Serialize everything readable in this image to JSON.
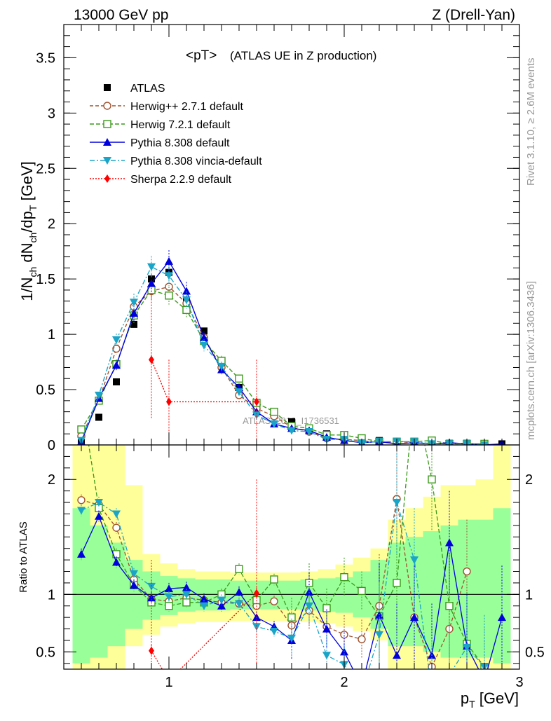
{
  "header": {
    "left": "13000 GeV pp",
    "right": "Z (Drell-Yan)"
  },
  "sidebar": {
    "rivet": "Rivet 3.1.10, ≥ 2.6M events",
    "mcplots": "mcplots.cern.ch [arXiv:1306.3436]"
  },
  "watermark": "ATLAS_2019_I1736531",
  "colors": {
    "atlas": "#000000",
    "herwigpp": "#a0522d",
    "herwig7": "#3a9a1a",
    "pythia": "#0000dd",
    "vincia": "#1aa5c8",
    "sherpa": "#ff0000",
    "band_inner": "#99ff99",
    "band_outer": "#ffff99"
  },
  "chart_data": [
    {
      "type": "line",
      "title": "<pT>",
      "subtitle": "(ATLAS UE in Z production)",
      "ylabel": "1/N_ch dN_ch/dp_T [GeV]",
      "xlabel": "",
      "xlim": [
        0.4,
        3.0
      ],
      "ylim": [
        0,
        3.8
      ],
      "yticks": [
        0,
        0.5,
        1,
        1.5,
        2,
        2.5,
        3,
        3.5
      ],
      "ytick_labels": [
        "0",
        "0.5",
        "1",
        "1.5",
        "2",
        "2.5",
        "3",
        "3.5"
      ],
      "legend": [
        "ATLAS",
        "Herwig++ 2.7.1 default",
        "Herwig 7.2.1 default",
        "Pythia 8.308 default",
        "Pythia 8.308 vincia-default",
        "Sherpa 2.2.9 default"
      ],
      "series": [
        {
          "name": "ATLAS",
          "marker": "square",
          "x": [
            0.5,
            0.6,
            0.7,
            0.8,
            0.9,
            1.0,
            1.1,
            1.2,
            1.3,
            1.4,
            1.5,
            1.6,
            1.7,
            1.8,
            1.9,
            2.0,
            2.1,
            2.2,
            2.3,
            2.4,
            2.5,
            2.6,
            2.7,
            2.8,
            2.9
          ],
          "y": [
            0.02,
            0.25,
            0.57,
            1.09,
            1.5,
            1.56,
            1.31,
            1.03,
            0.75,
            0.52,
            0.38,
            0.27,
            0.21,
            0.14,
            0.1,
            0.08,
            0.06,
            0.04,
            0.03,
            0.02,
            0.02,
            0.015,
            0.015,
            0.01,
            0.01
          ]
        },
        {
          "name": "Herwig++ 2.7.1 default",
          "marker": "circle-open",
          "x": [
            0.5,
            0.6,
            0.7,
            0.8,
            0.9,
            1.0,
            1.1,
            1.2,
            1.3,
            1.4,
            1.5,
            1.6,
            1.7,
            1.8,
            1.9,
            2.0,
            2.1,
            2.2,
            2.3,
            2.4,
            2.5,
            2.6,
            2.7,
            2.8
          ],
          "y": [
            0.08,
            0.4,
            0.87,
            1.25,
            1.39,
            1.43,
            1.28,
            0.97,
            0.7,
            0.45,
            0.33,
            0.26,
            0.16,
            0.12,
            0.06,
            0.05,
            0.04,
            0.02,
            0.03,
            0.02,
            0.01,
            0.01,
            0.01,
            0.01
          ]
        },
        {
          "name": "Herwig 7.2.1 default",
          "marker": "square-open",
          "x": [
            0.5,
            0.6,
            0.7,
            0.8,
            0.9,
            1.0,
            1.1,
            1.2,
            1.3,
            1.4,
            1.5,
            1.6,
            1.7,
            1.8,
            1.9,
            2.0,
            2.1,
            2.2,
            2.3,
            2.4,
            2.5,
            2.6,
            2.7,
            2.8
          ],
          "y": [
            0.14,
            0.4,
            0.73,
            1.17,
            1.4,
            1.35,
            1.22,
            0.94,
            0.76,
            0.6,
            0.38,
            0.3,
            0.17,
            0.15,
            0.09,
            0.09,
            0.06,
            0.03,
            0.03,
            0.03,
            0.04,
            0.01,
            0.01,
            0.01
          ]
        },
        {
          "name": "Pythia 8.308 default",
          "marker": "triangle-up",
          "x": [
            0.5,
            0.6,
            0.7,
            0.8,
            0.9,
            1.0,
            1.1,
            1.2,
            1.3,
            1.4,
            1.5,
            1.6,
            1.7,
            1.8,
            1.9,
            2.0,
            2.1,
            2.2,
            2.3,
            2.4,
            2.5,
            2.6,
            2.7,
            2.8,
            2.9
          ],
          "y": [
            0.03,
            0.42,
            0.72,
            1.19,
            1.46,
            1.66,
            1.39,
            0.97,
            0.68,
            0.52,
            0.3,
            0.19,
            0.15,
            0.13,
            0.07,
            0.04,
            0.02,
            0.03,
            0.01,
            0.02,
            0.01,
            0.02,
            0.01,
            0.0,
            0.01
          ]
        },
        {
          "name": "Pythia 8.308 vincia-default",
          "marker": "triangle-down",
          "x": [
            0.5,
            0.6,
            0.7,
            0.8,
            0.9,
            1.0,
            1.1,
            1.2,
            1.3,
            1.4,
            1.5,
            1.6,
            1.7,
            1.8,
            1.9,
            2.0,
            2.1,
            2.2,
            2.3,
            2.4,
            2.5,
            2.6,
            2.7,
            2.8
          ],
          "y": [
            0.04,
            0.45,
            0.95,
            1.29,
            1.61,
            1.53,
            1.31,
            0.9,
            0.71,
            0.48,
            0.27,
            0.19,
            0.13,
            0.12,
            0.05,
            0.05,
            0.02,
            0.03,
            0.03,
            0.03,
            0.01,
            0.01,
            0.01,
            0.0
          ]
        },
        {
          "name": "Sherpa 2.2.9 default",
          "marker": "diamond",
          "x": [
            0.9,
            1.0,
            1.5
          ],
          "y": [
            0.77,
            0.39,
            0.39
          ]
        }
      ]
    },
    {
      "type": "line",
      "title": "",
      "ylabel": "Ratio to ATLAS",
      "xlabel": "p_T [GeV]",
      "xlim": [
        0.4,
        3.0
      ],
      "ylim": [
        0.35,
        2.3
      ],
      "yticks": [
        0.5,
        1,
        2
      ],
      "ytick_labels": [
        "0.5",
        "1",
        "2"
      ],
      "xticks": [
        1,
        2,
        3
      ],
      "xtick_labels": [
        "1",
        "2",
        "3"
      ],
      "band_edges": [
        0.45,
        0.55,
        0.65,
        0.75,
        0.85,
        0.95,
        1.05,
        1.15,
        1.25,
        1.35,
        1.45,
        1.55,
        1.65,
        1.75,
        1.85,
        1.95,
        2.05,
        2.15,
        2.25,
        2.35,
        2.45,
        2.55,
        2.65,
        2.75,
        2.85,
        2.95
      ],
      "band_inner": [
        [
          0.4,
          1.75
        ],
        [
          0.45,
          1.6
        ],
        [
          0.55,
          1.45
        ],
        [
          0.7,
          1.3
        ],
        [
          0.78,
          1.2
        ],
        [
          0.82,
          1.16
        ],
        [
          0.85,
          1.14
        ],
        [
          0.86,
          1.13
        ],
        [
          0.86,
          1.13
        ],
        [
          0.87,
          1.12
        ],
        [
          0.87,
          1.12
        ],
        [
          0.87,
          1.12
        ],
        [
          0.87,
          1.12
        ],
        [
          0.86,
          1.13
        ],
        [
          0.85,
          1.14
        ],
        [
          0.84,
          1.15
        ],
        [
          0.8,
          1.2
        ],
        [
          0.7,
          1.3
        ],
        [
          0.55,
          1.45
        ],
        [
          0.55,
          1.5
        ],
        [
          0.5,
          1.55
        ],
        [
          0.45,
          1.6
        ],
        [
          0.45,
          1.65
        ],
        [
          0.45,
          1.65
        ],
        [
          0.4,
          1.75
        ]
      ],
      "band_outer": [
        [
          0.35,
          2.3
        ],
        [
          0.35,
          2.3
        ],
        [
          0.35,
          2.3
        ],
        [
          0.55,
          1.95
        ],
        [
          0.65,
          1.35
        ],
        [
          0.72,
          1.27
        ],
        [
          0.75,
          1.22
        ],
        [
          0.76,
          1.2
        ],
        [
          0.76,
          1.2
        ],
        [
          0.77,
          1.19
        ],
        [
          0.77,
          1.19
        ],
        [
          0.77,
          1.19
        ],
        [
          0.77,
          1.19
        ],
        [
          0.76,
          1.2
        ],
        [
          0.75,
          1.22
        ],
        [
          0.72,
          1.26
        ],
        [
          0.68,
          1.32
        ],
        [
          0.6,
          1.4
        ],
        [
          0.35,
          1.65
        ],
        [
          0.35,
          1.75
        ],
        [
          0.35,
          1.85
        ],
        [
          0.35,
          1.95
        ],
        [
          0.35,
          1.95
        ],
        [
          0.35,
          2.0
        ],
        [
          0.35,
          2.3
        ]
      ],
      "series": [
        {
          "name": "Herwig++ 2.7.1 default",
          "x": [
            0.5,
            0.6,
            0.7,
            0.8,
            0.9,
            1.0,
            1.1,
            1.2,
            1.3,
            1.4,
            1.5,
            1.6,
            1.7,
            1.8,
            1.9,
            2.0,
            2.1,
            2.2,
            2.3,
            2.4,
            2.5,
            2.6,
            2.7
          ],
          "y": [
            1.82,
            1.78,
            1.58,
            1.13,
            0.96,
            0.94,
            0.97,
            0.95,
            0.93,
            0.92,
            0.9,
            0.94,
            0.73,
            0.86,
            0.72,
            0.65,
            0.61,
            0.9,
            1.83,
            0.8,
            0.37,
            0.7,
            1.2
          ]
        },
        {
          "name": "Herwig 7.2.1 default",
          "x": [
            0.5,
            0.6,
            0.7,
            0.8,
            0.9,
            1.0,
            1.1,
            1.2,
            1.3,
            1.4,
            1.5,
            1.6,
            1.7,
            1.8,
            1.9,
            2.0,
            2.1,
            2.2,
            2.3,
            2.4,
            2.5,
            2.6,
            2.7,
            2.8
          ],
          "y": [
            2.7,
            1.75,
            1.35,
            1.08,
            0.93,
            0.9,
            0.93,
            0.93,
            1.0,
            1.22,
            0.95,
            1.13,
            0.8,
            1.1,
            0.88,
            1.15,
            1.03,
            0.81,
            1.1,
            2.75,
            2.0,
            0.9,
            0.57,
            0.37
          ]
        },
        {
          "name": "Pythia 8.308 default",
          "x": [
            0.5,
            0.6,
            0.7,
            0.8,
            0.9,
            1.0,
            1.1,
            1.2,
            1.3,
            1.4,
            1.5,
            1.6,
            1.7,
            1.8,
            1.9,
            2.0,
            2.1,
            2.2,
            2.3,
            2.4,
            2.5,
            2.6,
            2.7,
            2.8,
            2.9
          ],
          "y": [
            1.35,
            1.68,
            1.28,
            1.08,
            0.97,
            1.05,
            1.06,
            0.96,
            0.9,
            1.02,
            0.8,
            0.72,
            0.6,
            1.02,
            0.7,
            0.5,
            0.2,
            0.82,
            0.47,
            0.8,
            0.47,
            1.45,
            0.55,
            0.25,
            0.8
          ]
        },
        {
          "name": "Pythia 8.308 vincia-default",
          "x": [
            0.5,
            0.6,
            0.7,
            0.8,
            0.9,
            1.0,
            1.1,
            1.2,
            1.3,
            1.4,
            1.5,
            1.6,
            1.7,
            1.8,
            1.9,
            2.0,
            2.1,
            2.2,
            2.3,
            2.4,
            2.5,
            2.6,
            2.7,
            2.8
          ],
          "y": [
            1.73,
            1.8,
            1.7,
            1.18,
            1.07,
            0.98,
            1.0,
            0.9,
            0.95,
            0.92,
            0.72,
            0.68,
            0.62,
            0.9,
            0.47,
            0.39,
            0.15,
            0.65,
            1.8,
            1.3,
            0.15,
            0.3,
            0.54,
            0.37
          ]
        },
        {
          "name": "Sherpa 2.2.9 default",
          "x": [
            0.9,
            1.0,
            1.5
          ],
          "y": [
            0.51,
            0.25,
            1.01
          ]
        }
      ]
    }
  ]
}
